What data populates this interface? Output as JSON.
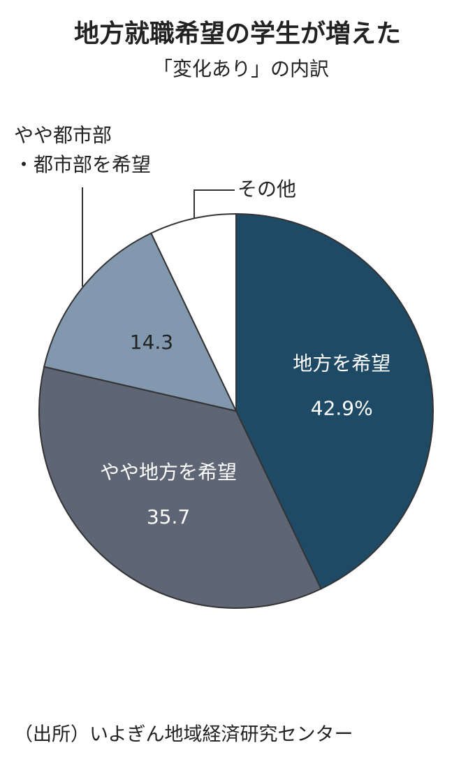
{
  "chart_data": {
    "type": "pie",
    "title": "地方就職希望の学生が増えた",
    "subtitle": "「変化あり」の内訳",
    "categories": [
      "地方を希望",
      "やや地方を希望",
      [
        "やや都市部",
        "・都市部を希望"
      ],
      "その他"
    ],
    "values": [
      42.9,
      35.7,
      14.3,
      7.1
    ],
    "value_labels": [
      "42.9%",
      "35.7",
      "14.3",
      null
    ],
    "colors": [
      "#1e4a66",
      "#5e6676",
      "#8198ae",
      "#ffffff"
    ],
    "source": "（出所）いよぎん地域経済研究センター"
  }
}
